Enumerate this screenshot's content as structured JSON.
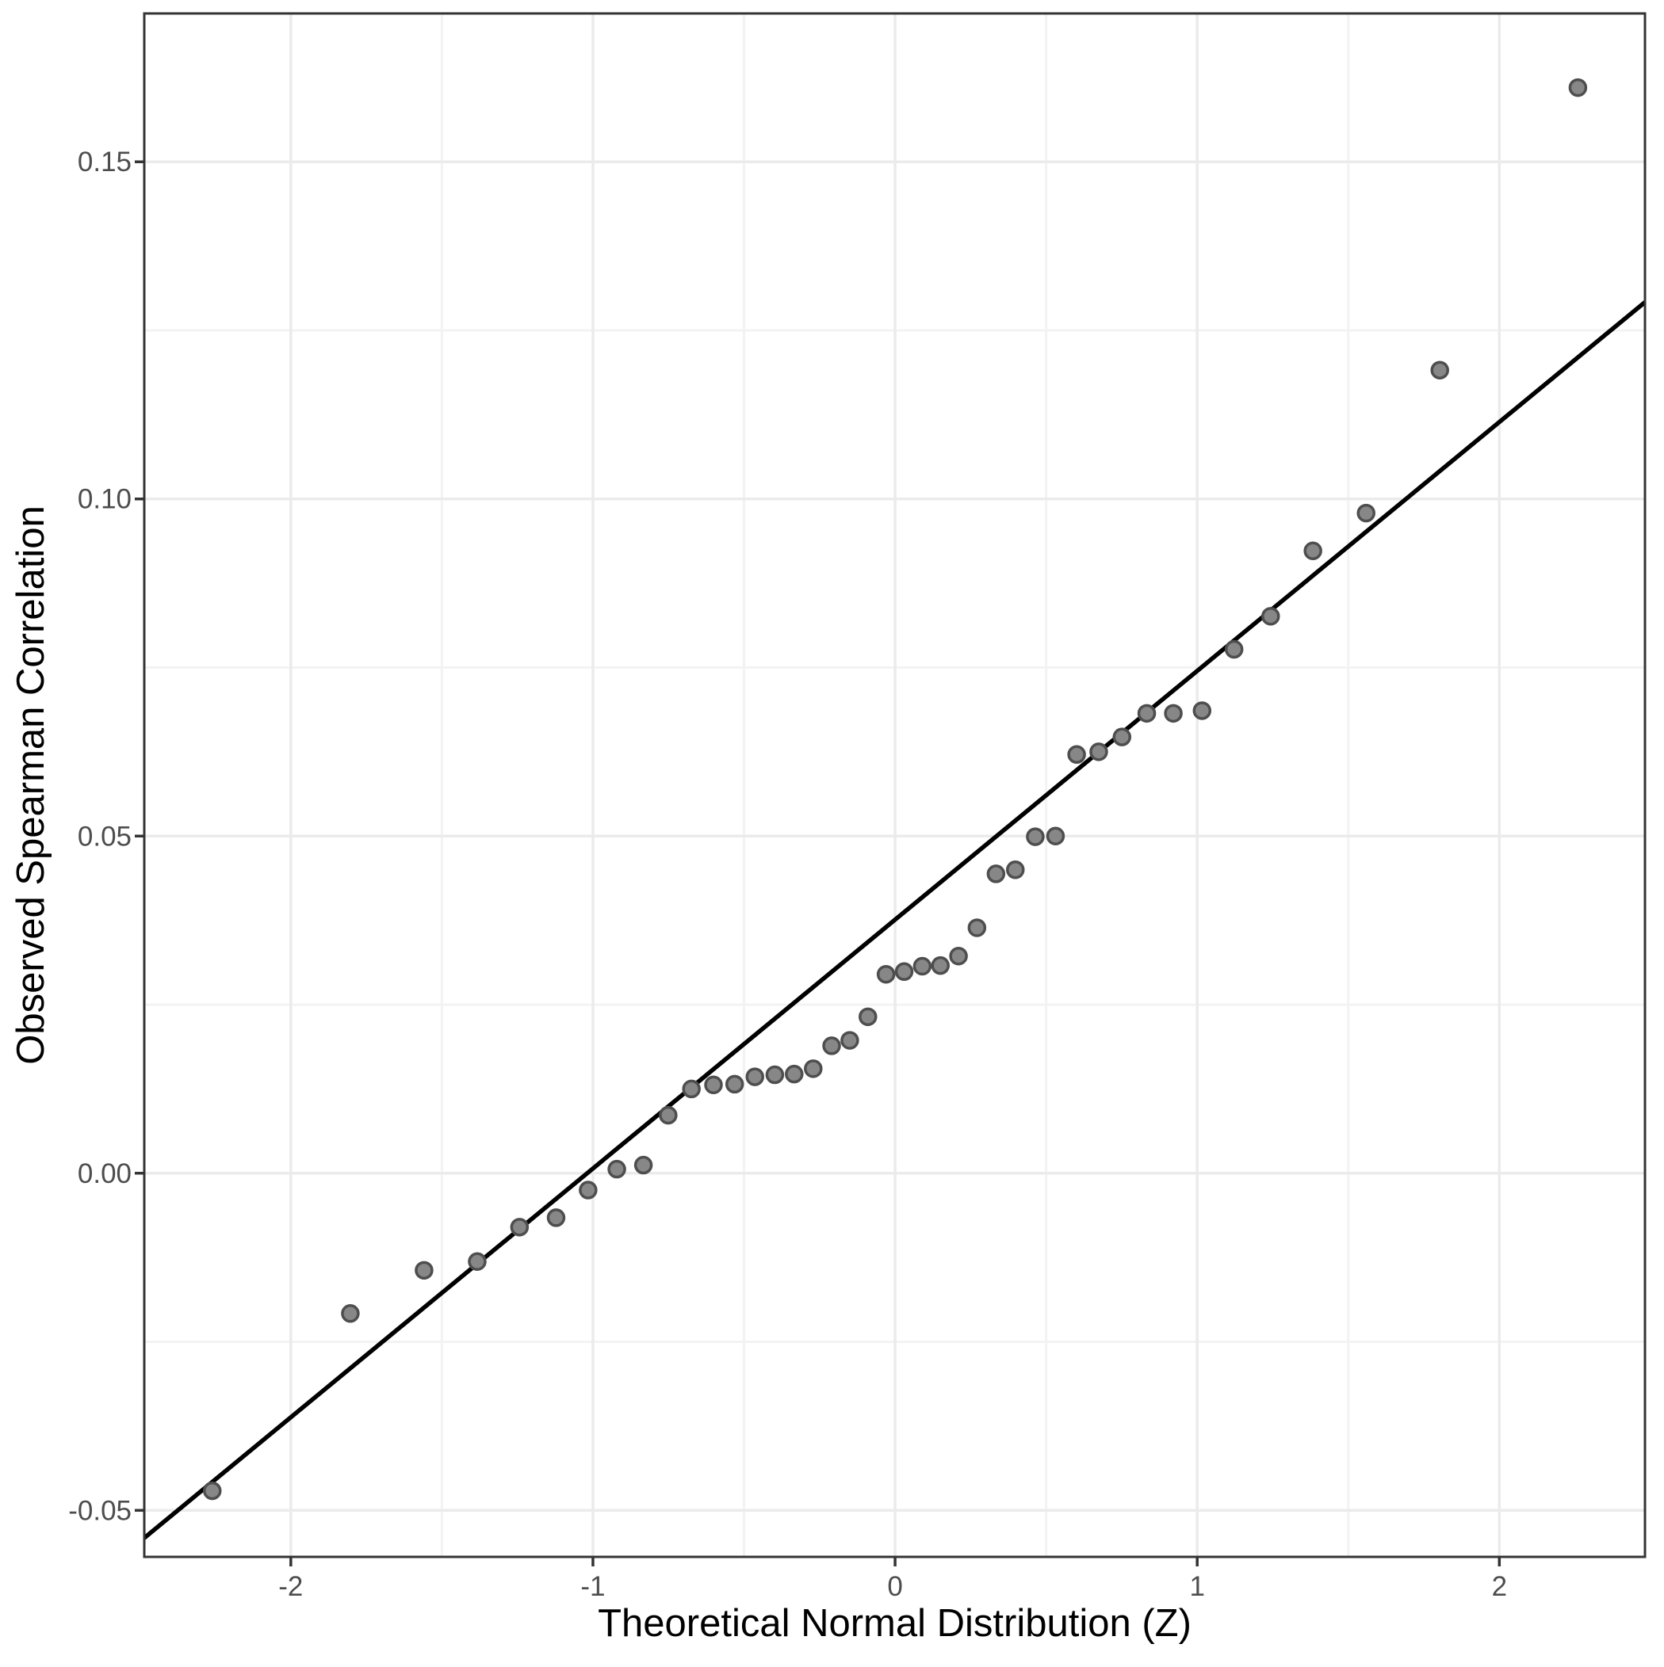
{
  "chart_data": {
    "type": "scatter",
    "title": "",
    "xlabel": "Theoretical Normal Distribution (Z)",
    "ylabel": "Observed Spearman Correlation",
    "xlim": [
      -2.485,
      2.482
    ],
    "ylim": [
      -0.0569,
      0.172
    ],
    "grid": "major+minor",
    "legend": "none",
    "x_ticks": {
      "values": [
        -2,
        -1,
        0,
        1,
        2
      ],
      "labels": [
        "-2",
        "-1",
        "0",
        "1",
        "2"
      ]
    },
    "y_ticks": {
      "values": [
        0.15,
        0.1,
        0.05,
        0.0,
        -0.05
      ],
      "labels": [
        "0.15",
        "0.10",
        "0.05",
        "0.00",
        "-0.05"
      ]
    },
    "reference_line": {
      "slope": 0.0369,
      "intercept": 0.0376
    },
    "series_name": "observed-vs-theoretical-quantiles",
    "points": [
      [
        -2.26,
        -0.0471
      ],
      [
        -1.803,
        -0.0208
      ],
      [
        -1.559,
        -0.0144
      ],
      [
        -1.383,
        -0.0131
      ],
      [
        -1.243,
        -0.008
      ],
      [
        -1.122,
        -0.0066
      ],
      [
        -1.016,
        -0.0025
      ],
      [
        -0.921,
        0.0006
      ],
      [
        -0.833,
        0.0012
      ],
      [
        -0.751,
        0.0086
      ],
      [
        -0.674,
        0.0125
      ],
      [
        -0.601,
        0.0131
      ],
      [
        -0.531,
        0.0132
      ],
      [
        -0.464,
        0.0143
      ],
      [
        -0.398,
        0.0146
      ],
      [
        -0.334,
        0.0147
      ],
      [
        -0.271,
        0.0155
      ],
      [
        -0.21,
        0.0189
      ],
      [
        -0.15,
        0.0197
      ],
      [
        -0.09,
        0.0232
      ],
      [
        -0.03,
        0.0295
      ],
      [
        0.03,
        0.0299
      ],
      [
        0.09,
        0.0307
      ],
      [
        0.15,
        0.0308
      ],
      [
        0.21,
        0.0322
      ],
      [
        0.271,
        0.0364
      ],
      [
        0.334,
        0.0444
      ],
      [
        0.398,
        0.045
      ],
      [
        0.464,
        0.0499
      ],
      [
        0.531,
        0.05
      ],
      [
        0.601,
        0.0621
      ],
      [
        0.674,
        0.0625
      ],
      [
        0.751,
        0.0647
      ],
      [
        0.833,
        0.0682
      ],
      [
        0.921,
        0.0682
      ],
      [
        1.016,
        0.0686
      ],
      [
        1.122,
        0.0777
      ],
      [
        1.243,
        0.0826
      ],
      [
        1.383,
        0.0923
      ],
      [
        1.559,
        0.0979
      ],
      [
        1.803,
        0.1191
      ],
      [
        2.26,
        0.161
      ]
    ],
    "colors": {
      "background": "#ffffff",
      "panel_background": "#ffffff",
      "panel_border": "#343434",
      "grid_major": "#ebebeb",
      "grid_minor": "#f3f3f3",
      "tick": "#333333",
      "tick_label": "#4d4d4d",
      "axis_title": "#000000",
      "point_fill": "#878787",
      "point_stroke": "#4e4e4e",
      "reference_line_color": "#000000"
    }
  }
}
